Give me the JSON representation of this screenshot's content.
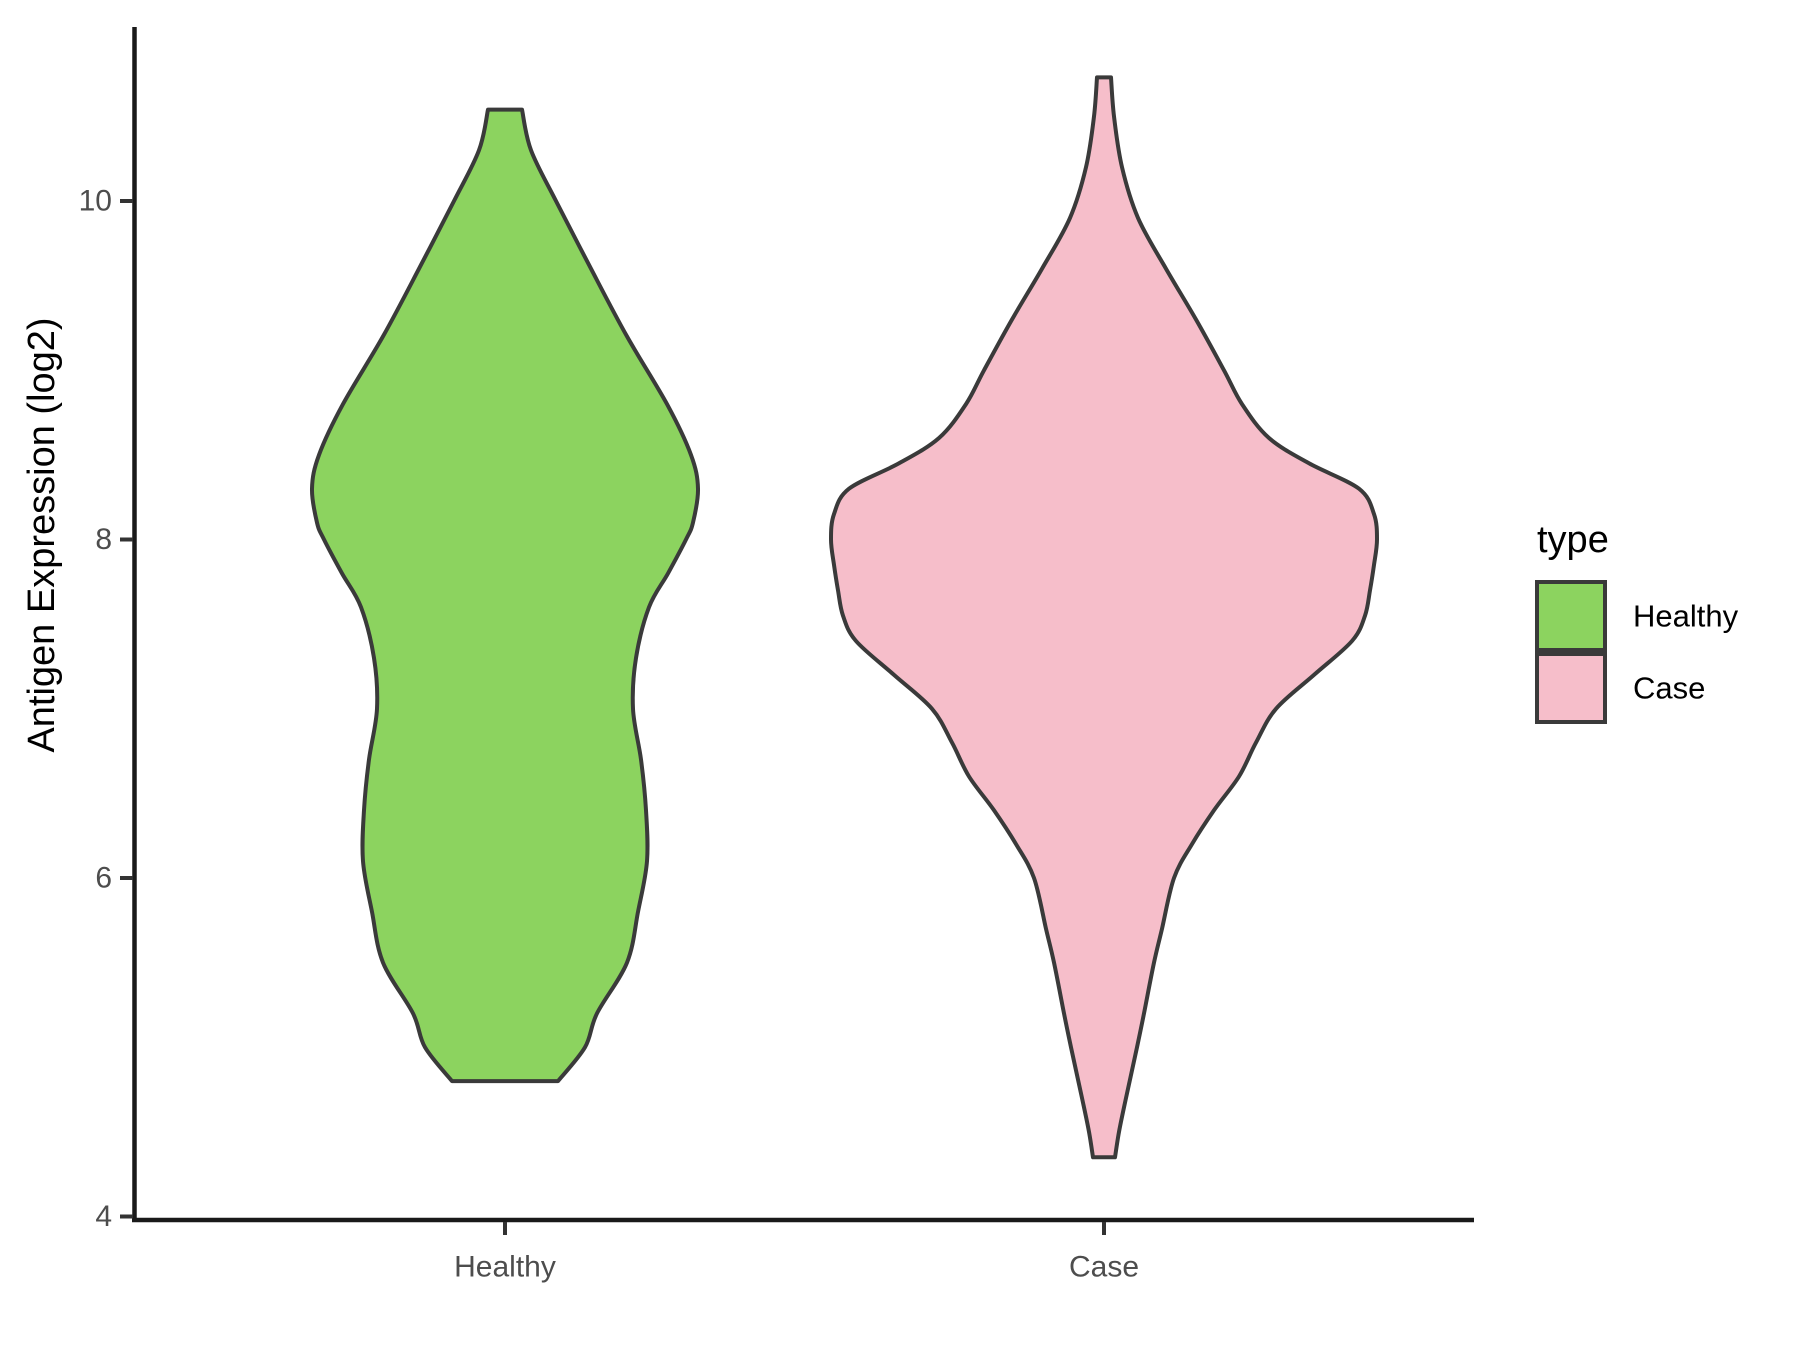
{
  "figure": {
    "background": "#FFFFFF"
  },
  "y_axis": {
    "label": "Antigen Expression (log2)",
    "tick_labels": [
      "10",
      "8",
      "6",
      "4"
    ],
    "tick_values": [
      10,
      8,
      6,
      4
    ],
    "tick_label_color": "#4D4D4D"
  },
  "x_axis": {
    "categories": [
      "Healthy",
      "Case"
    ],
    "tick_label_color": "#4D4D4D"
  },
  "legend": {
    "title": "type",
    "items": [
      {
        "label": "Healthy",
        "fill": "#8CD35F"
      },
      {
        "label": "Case",
        "fill": "#F6BECA"
      }
    ]
  },
  "colors": {
    "healthy_fill": "#8CD35F",
    "case_fill": "#F6BECA",
    "violin_outline": "#3A3A3A",
    "axis_line": "#1A1A1A",
    "tick_mark": "#333333",
    "tick_label": "#4D4D4D",
    "text": "#000000",
    "background": "#FFFFFF"
  },
  "chart_data": {
    "type": "violin",
    "title": "",
    "xlabel": "",
    "ylabel": "Antigen Expression (log2)",
    "categories": [
      "Healthy",
      "Case"
    ],
    "ylim": [
      4,
      11.05
    ],
    "y_ticks": [
      4,
      6,
      8,
      10
    ],
    "grid": false,
    "legend_position": "right",
    "legend_title": "type",
    "profile_units": "pairs of [expression_value, half_width_px] describing each violin's kernel-density outline",
    "series": [
      {
        "name": "Healthy",
        "fill": "#8CD35F",
        "outline": "#3A3A3A",
        "value_range": [
          4.8,
          10.54
        ],
        "max_density_value": 8.3,
        "profile": [
          [
            10.54,
            17
          ],
          [
            10.3,
            26
          ],
          [
            10.0,
            51
          ],
          [
            9.6,
            86
          ],
          [
            9.2,
            122
          ],
          [
            8.8,
            162
          ],
          [
            8.5,
            186
          ],
          [
            8.3,
            193
          ],
          [
            8.1,
            188
          ],
          [
            8.0,
            181
          ],
          [
            7.8,
            163
          ],
          [
            7.6,
            144
          ],
          [
            7.3,
            131
          ],
          [
            7.0,
            128
          ],
          [
            6.7,
            136
          ],
          [
            6.4,
            141
          ],
          [
            6.1,
            142
          ],
          [
            5.8,
            133
          ],
          [
            5.5,
            122
          ],
          [
            5.2,
            92
          ],
          [
            5.0,
            80
          ],
          [
            4.8,
            53
          ]
        ]
      },
      {
        "name": "Case",
        "fill": "#F6BECA",
        "outline": "#3A3A3A",
        "value_range": [
          4.35,
          10.73
        ],
        "max_density_value": 8.0,
        "profile": [
          [
            10.73,
            7
          ],
          [
            10.5,
            10
          ],
          [
            10.2,
            18
          ],
          [
            9.9,
            34
          ],
          [
            9.6,
            62
          ],
          [
            9.3,
            92
          ],
          [
            9.0,
            120
          ],
          [
            8.8,
            138
          ],
          [
            8.6,
            165
          ],
          [
            8.45,
            205
          ],
          [
            8.3,
            255
          ],
          [
            8.15,
            270
          ],
          [
            8.0,
            273
          ],
          [
            7.85,
            270
          ],
          [
            7.7,
            266
          ],
          [
            7.55,
            261
          ],
          [
            7.4,
            248
          ],
          [
            7.2,
            210
          ],
          [
            7.0,
            172
          ],
          [
            6.8,
            152
          ],
          [
            6.6,
            135
          ],
          [
            6.4,
            110
          ],
          [
            6.2,
            88
          ],
          [
            6.0,
            70
          ],
          [
            5.7,
            58
          ],
          [
            5.5,
            50
          ],
          [
            5.2,
            40
          ],
          [
            5.0,
            33
          ],
          [
            4.7,
            22
          ],
          [
            4.5,
            15
          ],
          [
            4.35,
            11
          ]
        ]
      }
    ]
  }
}
